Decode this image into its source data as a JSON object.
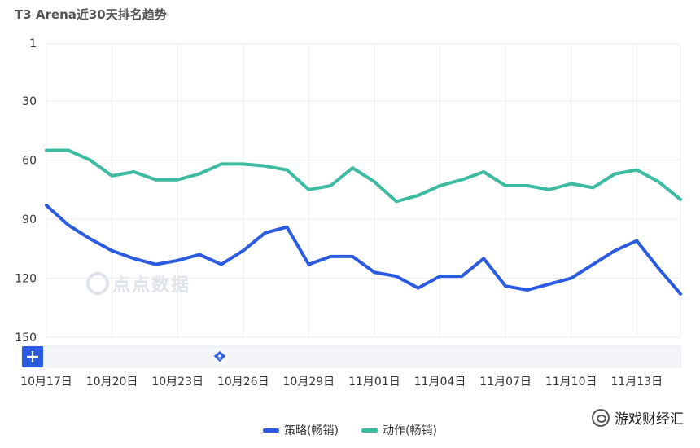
{
  "chart_data": {
    "type": "line",
    "title": "T3 Arena近30天排名趋势",
    "y_inverted": true,
    "ylim": [
      1,
      150
    ],
    "y_ticks": [
      1,
      30,
      60,
      90,
      120,
      150
    ],
    "x_tick_labels": [
      "10月17日",
      "10月20日",
      "10月23日",
      "10月26日",
      "10月29日",
      "11月01日",
      "11月04日",
      "11月07日",
      "11月10日",
      "11月13日"
    ],
    "x": [
      "10月17日",
      "10月18日",
      "10月19日",
      "10月20日",
      "10月21日",
      "10月22日",
      "10月23日",
      "10月24日",
      "10月25日",
      "10月26日",
      "10月27日",
      "10月28日",
      "10月29日",
      "10月30日",
      "10月31日",
      "11月01日",
      "11月02日",
      "11月03日",
      "11月04日",
      "11月05日",
      "11月06日",
      "11月07日",
      "11月08日",
      "11月09日",
      "11月10日",
      "11月11日",
      "11月12日",
      "11月13日",
      "11月14日",
      "11月15日"
    ],
    "series": [
      {
        "name": "策略(畅销)",
        "color": "#2b5be0",
        "values": [
          83,
          93,
          100,
          106,
          110,
          113,
          111,
          108,
          113,
          106,
          97,
          94,
          113,
          109,
          109,
          117,
          119,
          125,
          119,
          119,
          110,
          124,
          126,
          123,
          120,
          113,
          106,
          101,
          115,
          128
        ]
      },
      {
        "name": "动作(畅销)",
        "color": "#3dbba0",
        "values": [
          55,
          55,
          60,
          68,
          66,
          70,
          70,
          67,
          62,
          62,
          63,
          65,
          75,
          73,
          64,
          71,
          81,
          78,
          73,
          70,
          66,
          73,
          73,
          75,
          72,
          74,
          67,
          65,
          71,
          80
        ]
      }
    ],
    "legend_position": "bottom",
    "grid": true
  },
  "watermark": "点点数据",
  "brand": "游戏财经汇",
  "zoom_icon": "plus-icon",
  "slider_handle_icon": "diamond-handle-icon"
}
